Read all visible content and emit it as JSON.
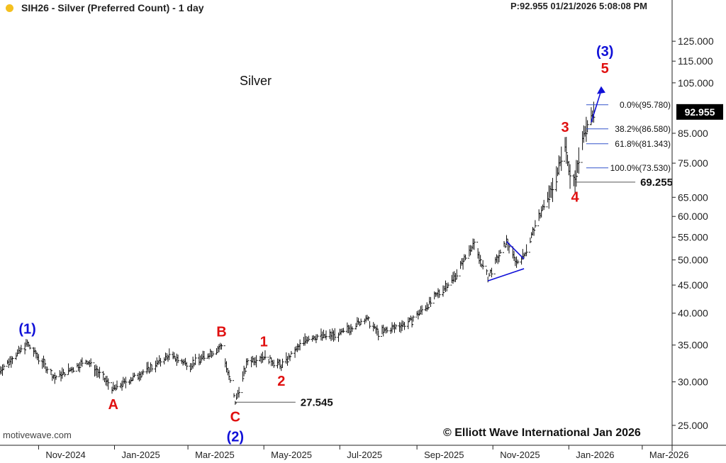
{
  "header": {
    "title": "SIH26 - Silver (Preferred Count) - 1 day",
    "price_info": "P:92.955  01/21/2026 5:08:08 PM"
  },
  "chart_name": "Silver",
  "brand": "motivewave.com",
  "copyright": "© Elliott Wave International Jan 2026",
  "colors": {
    "bars": "#111111",
    "wave_blue": "#1010d8",
    "wave_red": "#e01010",
    "fib_line": "#3355cc",
    "price_box": "#000000",
    "header_dot": "#f4c01f"
  },
  "chart_data": {
    "type": "bar",
    "title": "SIH26 - Silver (Preferred Count) - 1 day",
    "xlabel": "",
    "ylabel": "",
    "y_scale": "log",
    "ylim": [
      23,
      140
    ],
    "x_range": [
      "2024-10-01",
      "2026-03-25"
    ],
    "x_tick_labels": [
      "Nov-2024",
      "Jan-2025",
      "Mar-2025",
      "May-2025",
      "Jul-2025",
      "Sep-2025",
      "Nov-2025",
      "Jan-2026",
      "Mar-2026"
    ],
    "x_ticks": [
      "2024-11-01",
      "2025-01-01",
      "2025-03-01",
      "2025-05-01",
      "2025-07-01",
      "2025-09-01",
      "2025-11-01",
      "2026-01-01",
      "2026-03-01"
    ],
    "y_ticks": [
      25,
      30,
      35,
      40,
      45,
      50,
      55,
      60,
      65,
      75,
      85,
      105,
      115,
      125
    ],
    "y_tick_labels": [
      "25.000",
      "30.000",
      "35.000",
      "40.000",
      "45.000",
      "50.000",
      "55.000",
      "60.000",
      "65.000",
      "75.000",
      "85.000",
      "105.000",
      "115.000",
      "125.000"
    ],
    "last_price": 92.955,
    "last_price_label": "92.955",
    "price_path": [
      [
        "2024-10-01",
        31.5
      ],
      [
        "2024-10-23",
        35.2
      ],
      [
        "2024-11-14",
        30.5
      ],
      [
        "2024-12-10",
        32.8
      ],
      [
        "2024-12-31",
        29.1
      ],
      [
        "2025-01-30",
        31.8
      ],
      [
        "2025-02-14",
        33.5
      ],
      [
        "2025-03-03",
        32.2
      ],
      [
        "2025-03-28",
        34.8
      ],
      [
        "2025-04-08",
        27.6
      ],
      [
        "2025-04-18",
        32.7
      ],
      [
        "2025-05-01",
        33.4
      ],
      [
        "2025-05-15",
        32.1
      ],
      [
        "2025-06-06",
        36.2
      ],
      [
        "2025-06-30",
        36.5
      ],
      [
        "2025-07-22",
        39.2
      ],
      [
        "2025-08-01",
        36.8
      ],
      [
        "2025-08-25",
        38.4
      ],
      [
        "2025-09-10",
        41.5
      ],
      [
        "2025-10-01",
        46.5
      ],
      [
        "2025-10-16",
        53.5
      ],
      [
        "2025-10-28",
        46.5
      ],
      [
        "2025-11-12",
        54.0
      ],
      [
        "2025-11-20",
        49.5
      ],
      [
        "2025-11-26",
        51.0
      ],
      [
        "2025-12-10",
        61.5
      ],
      [
        "2025-12-20",
        68.0
      ],
      [
        "2025-12-29",
        82.0
      ],
      [
        "2026-01-02",
        71.5
      ],
      [
        "2026-01-06",
        69.3
      ],
      [
        "2026-01-09",
        76.0
      ],
      [
        "2026-01-14",
        86.5
      ],
      [
        "2026-01-21",
        92.955
      ]
    ],
    "price_labels": [
      {
        "date": "2025-04-08",
        "price": 27.545,
        "label": "27.545"
      },
      {
        "date": "2026-01-06",
        "price": 69.255,
        "label": "69.255"
      }
    ],
    "fib_levels": [
      {
        "label": "0.0%(95.780)",
        "price": 95.78
      },
      {
        "label": "38.2%(86.580)",
        "price": 86.58
      },
      {
        "label": "61.8%(81.343)",
        "price": 81.343
      },
      {
        "label": "100.0%(73.530)",
        "price": 73.53
      }
    ],
    "wave_labels": [
      {
        "text": "(1)",
        "date": "2024-10-23",
        "price": 35.2,
        "color": "blue",
        "pos": "above"
      },
      {
        "text": "A",
        "date": "2024-12-31",
        "price": 29.1,
        "color": "red",
        "pos": "below"
      },
      {
        "text": "B",
        "date": "2025-03-28",
        "price": 34.8,
        "color": "red",
        "pos": "above"
      },
      {
        "text": "C",
        "date": "2025-04-08",
        "price": 27.6,
        "color": "red",
        "pos": "below"
      },
      {
        "text": "(2)",
        "date": "2025-04-08",
        "price": 27.6,
        "color": "blue",
        "pos": "below2"
      },
      {
        "text": "1",
        "date": "2025-05-01",
        "price": 33.4,
        "color": "red",
        "pos": "above"
      },
      {
        "text": "2",
        "date": "2025-05-15",
        "price": 32.1,
        "color": "red",
        "pos": "below"
      },
      {
        "text": "3",
        "date": "2025-12-29",
        "price": 82.0,
        "color": "red",
        "pos": "above"
      },
      {
        "text": "4",
        "date": "2026-01-06",
        "price": 69.3,
        "color": "red",
        "pos": "below"
      },
      {
        "text": "5",
        "date": "2026-01-30",
        "price": 105,
        "color": "red",
        "pos": "above"
      },
      {
        "text": "(3)",
        "date": "2026-01-30",
        "price": 105,
        "color": "blue",
        "pos": "above2"
      }
    ],
    "trendlines": [
      {
        "from": [
          "2025-10-28",
          45.8
        ],
        "to": [
          "2025-11-26",
          48.2
        ]
      },
      {
        "from": [
          "2025-11-12",
          54.0
        ],
        "to": [
          "2025-11-26",
          50.2
        ]
      }
    ],
    "projection_arrow": {
      "from": [
        "2026-01-19",
        89.0
      ],
      "to": [
        "2026-01-27",
        103.5
      ]
    }
  }
}
